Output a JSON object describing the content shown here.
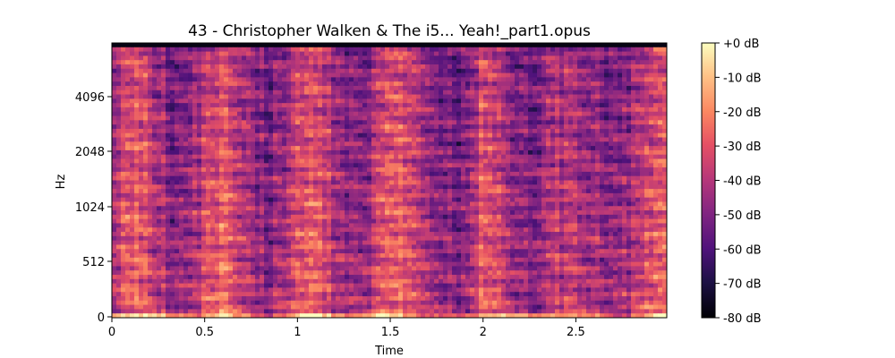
{
  "chart_data": {
    "type": "heatmap",
    "title": "43 - Christopher Walken & The i5... Yeah!_part1.opus",
    "xlabel": "Time",
    "ylabel": "Hz",
    "x_range": [
      0,
      2.99
    ],
    "x_ticks": [
      {
        "value": 0,
        "label": "0"
      },
      {
        "value": 0.5,
        "label": "0.5"
      },
      {
        "value": 1,
        "label": "1"
      },
      {
        "value": 1.5,
        "label": "1.5"
      },
      {
        "value": 2,
        "label": "2"
      },
      {
        "value": 2.5,
        "label": "2.5"
      }
    ],
    "y_scale": "log2-mel",
    "y_ticks": [
      {
        "value": 0,
        "label": "0"
      },
      {
        "value": 512,
        "label": "512"
      },
      {
        "value": 1024,
        "label": "1024"
      },
      {
        "value": 2048,
        "label": "2048"
      },
      {
        "value": 4096,
        "label": "4096"
      }
    ],
    "colormap": "magma",
    "colorbar": {
      "range_db": [
        -80,
        0
      ],
      "ticks": [
        {
          "value": 0,
          "label": "+0 dB"
        },
        {
          "value": -10,
          "label": "-10 dB"
        },
        {
          "value": -20,
          "label": "-20 dB"
        },
        {
          "value": -30,
          "label": "-30 dB"
        },
        {
          "value": -40,
          "label": "-40 dB"
        },
        {
          "value": -50,
          "label": "-50 dB"
        },
        {
          "value": -60,
          "label": "-60 dB"
        },
        {
          "value": -70,
          "label": "-70 dB"
        },
        {
          "value": -80,
          "label": "-80 dB"
        }
      ]
    }
  }
}
